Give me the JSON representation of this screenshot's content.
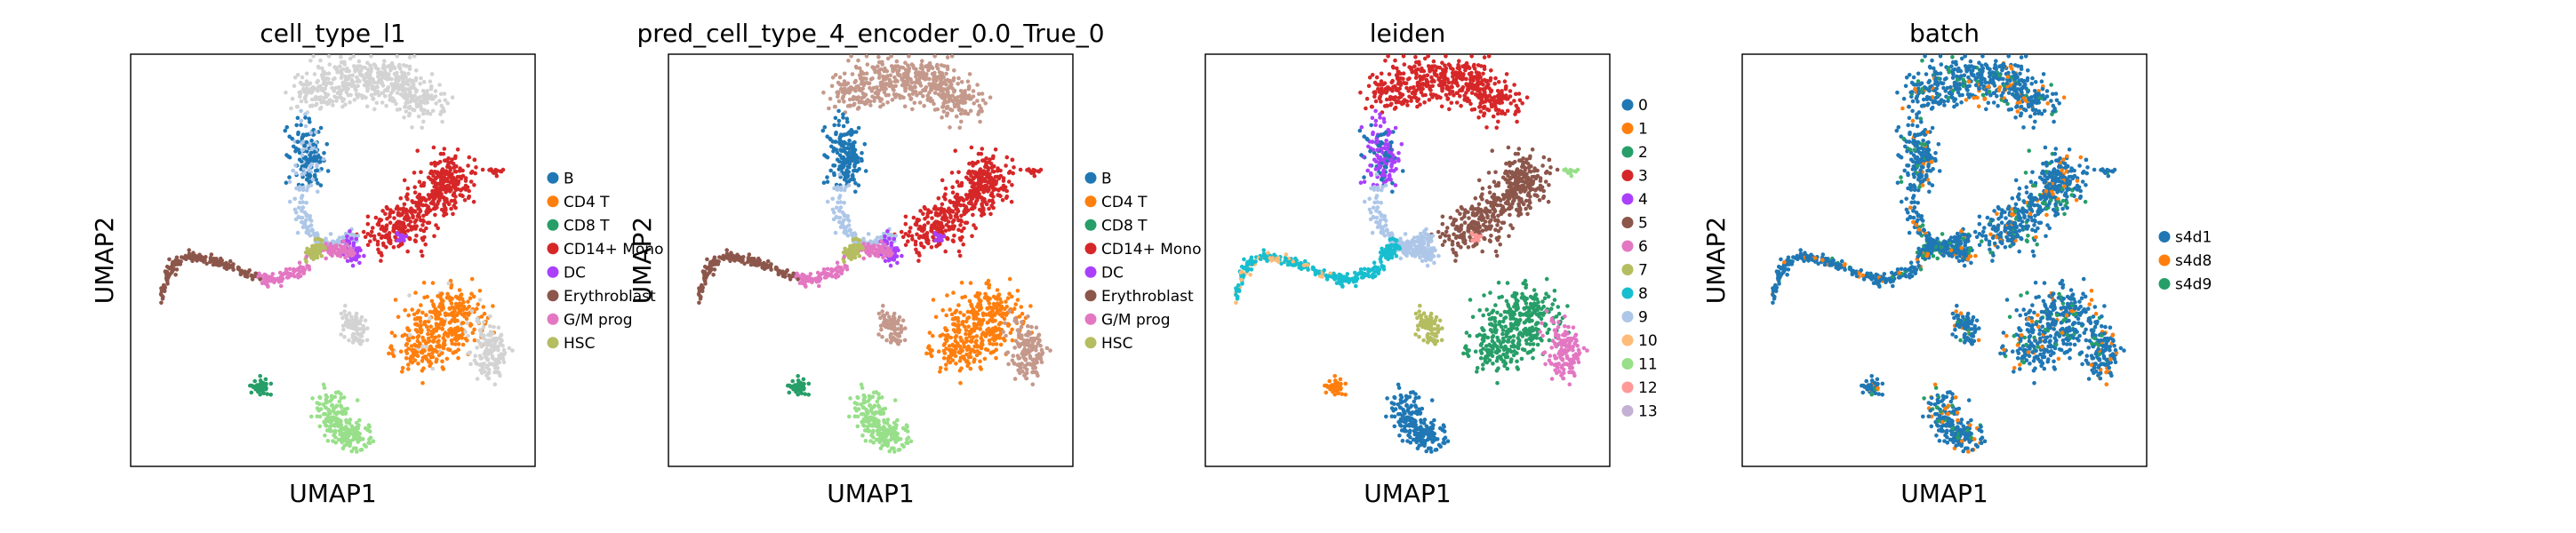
{
  "colors": {
    "palette": [
      "#1f77b4",
      "#ff7f0e",
      "#279e68",
      "#d62728",
      "#aa40fc",
      "#8c564b",
      "#e377c2",
      "#b5bd61",
      "#17becf",
      "#aec7e8",
      "#ffbb78",
      "#98df8a",
      "#ff9896",
      "#c5b0d5"
    ],
    "unassigned": "#d3d3d3",
    "frame": "#000000"
  },
  "chart_data": [
    {
      "type": "scatter",
      "title": "cell_type_l1",
      "xlabel": "UMAP1",
      "ylabel": "UMAP2",
      "grid": false,
      "legend": "right",
      "categories": [
        "B",
        "CD4 T",
        "CD8 T",
        "CD14+ Mono",
        "DC",
        "Erythroblast",
        "G/M prog",
        "HSC"
      ],
      "category_colors": [
        "#1f77b4",
        "#ff7f0e",
        "#279e68",
        "#d62728",
        "#aa40fc",
        "#8c564b",
        "#e377c2",
        "#b5bd61"
      ]
    },
    {
      "type": "scatter",
      "title": "pred_cell_type_4_encoder_0.0_True_0",
      "xlabel": "UMAP1",
      "ylabel": "UMAP2",
      "grid": false,
      "legend": "right",
      "categories": [
        "B",
        "CD4 T",
        "CD8 T",
        "CD14+ Mono",
        "DC",
        "Erythroblast",
        "G/M prog",
        "HSC"
      ],
      "category_colors": [
        "#1f77b4",
        "#ff7f0e",
        "#279e68",
        "#d62728",
        "#aa40fc",
        "#8c564b",
        "#e377c2",
        "#b5bd61"
      ]
    },
    {
      "type": "scatter",
      "title": "leiden",
      "xlabel": "UMAP1",
      "ylabel": "",
      "grid": false,
      "legend": "right",
      "categories": [
        "0",
        "1",
        "2",
        "3",
        "4",
        "5",
        "6",
        "7",
        "8",
        "9",
        "10",
        "11",
        "12",
        "13"
      ],
      "category_colors": [
        "#1f77b4",
        "#ff7f0e",
        "#279e68",
        "#d62728",
        "#aa40fc",
        "#8c564b",
        "#e377c2",
        "#b5bd61",
        "#17becf",
        "#aec7e8",
        "#ffbb78",
        "#98df8a",
        "#ff9896",
        "#c5b0d5"
      ]
    },
    {
      "type": "scatter",
      "title": "batch",
      "xlabel": "UMAP1",
      "ylabel": "UMAP2",
      "grid": false,
      "legend": "right",
      "categories": [
        "s4d1",
        "s4d8",
        "s4d9"
      ],
      "category_colors": [
        "#1f77b4",
        "#ff7f0e",
        "#279e68"
      ]
    }
  ]
}
